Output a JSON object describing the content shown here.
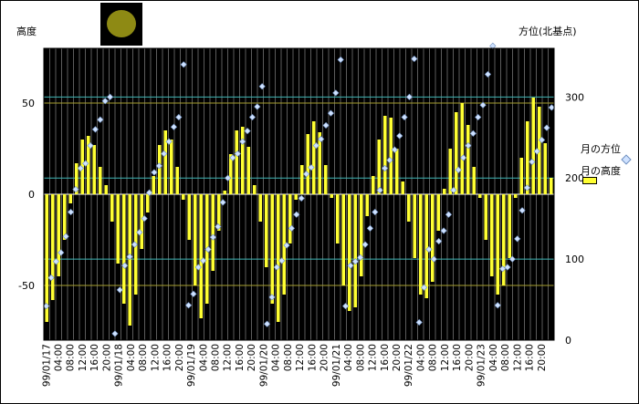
{
  "chart_data": {
    "type": "bar+scatter",
    "y_left_label": "高度",
    "y_right_label": "方位(北基点)",
    "y_left_ticks": [
      "50",
      "0",
      "-50"
    ],
    "y_right_ticks": [
      "300",
      "200",
      "100",
      "0"
    ],
    "ylim_left": [
      -80,
      80
    ],
    "ylim_right": [
      0,
      360
    ],
    "legend": [
      "月の方位",
      "月の高度"
    ],
    "legend_position": "right",
    "x_ticks": [
      "99/01/17",
      "04:00",
      "08:00",
      "12:00",
      "16:00",
      "20:00",
      "99/01/18",
      "04:00",
      "08:00",
      "12:00",
      "16:00",
      "20:00",
      "99/01/19",
      "04:00",
      "08:00",
      "12:00",
      "16:00",
      "20:00",
      "99/01/20",
      "04:00",
      "08:00",
      "12:00",
      "16:00",
      "20:00",
      "99/01/21",
      "04:00",
      "08:00",
      "12:00",
      "16:00",
      "20:00",
      "99/01/22",
      "04:00",
      "08:00",
      "12:00",
      "16:00",
      "20:00",
      "99/01/23",
      "04:00",
      "08:00",
      "12:00",
      "16:00",
      "20:00"
    ],
    "series": [
      {
        "name": "月の高度",
        "type": "bar",
        "values": [
          -70,
          -58,
          -45,
          -25,
          -5,
          17,
          30,
          32,
          27,
          15,
          5,
          -15,
          -38,
          -60,
          -72,
          -55,
          -30,
          -10,
          10,
          27,
          35,
          30,
          15,
          -3,
          -25,
          -50,
          -68,
          -60,
          -42,
          -20,
          2,
          22,
          35,
          37,
          26,
          5,
          -15,
          -40,
          -60,
          -70,
          -55,
          -27,
          -3,
          16,
          33,
          40,
          34,
          16,
          -2,
          -27,
          -50,
          -64,
          -62,
          -45,
          -12,
          10,
          30,
          43,
          42,
          25,
          7,
          -15,
          -35,
          -55,
          -57,
          -48,
          -20,
          3,
          25,
          45,
          50,
          38,
          15,
          -2,
          -25,
          -45,
          -55,
          -50,
          -35,
          -2,
          20,
          40,
          53,
          48,
          28,
          9
        ]
      },
      {
        "name": "月の方位",
        "type": "scatter",
        "values": [
          42,
          77,
          97,
          108,
          128,
          158,
          186,
          212,
          218,
          240,
          260,
          272,
          295,
          300,
          8,
          62,
          92,
          103,
          118,
          133,
          150,
          182,
          207,
          215,
          230,
          245,
          263,
          275,
          340,
          43,
          57,
          90,
          98,
          112,
          127,
          140,
          170,
          200,
          225,
          230,
          245,
          258,
          275,
          288,
          313,
          20,
          53,
          90,
          98,
          117,
          138,
          155,
          175,
          205,
          213,
          240,
          248,
          265,
          280,
          305,
          346,
          42,
          92,
          97,
          102,
          118,
          138,
          158,
          185,
          212,
          222,
          235,
          252,
          275,
          300,
          347,
          22,
          65,
          112,
          100,
          122,
          135,
          155,
          185,
          210,
          225,
          240,
          255,
          275,
          290,
          328,
          363,
          43,
          88,
          90,
          100,
          125,
          160,
          188,
          220,
          233,
          247,
          262,
          287
        ]
      }
    ]
  }
}
